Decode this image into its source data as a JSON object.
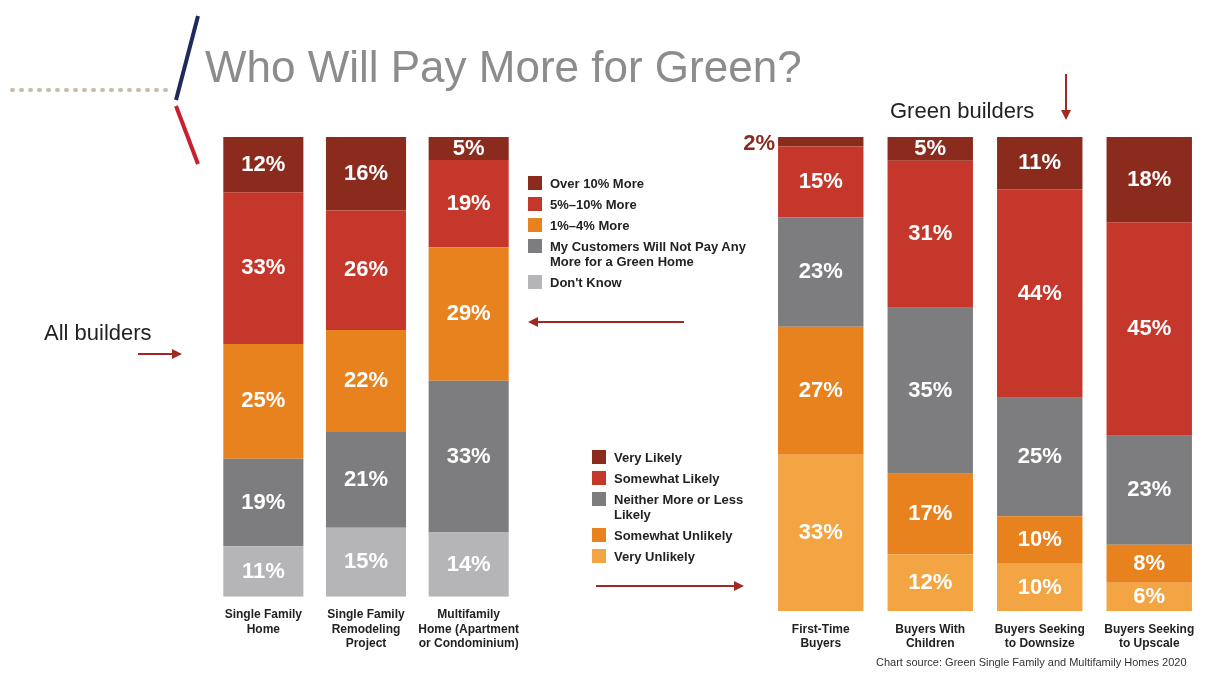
{
  "chart_data": [
    {
      "type": "bar",
      "title": "Who Will Pay More for Green?",
      "subtitle": "All builders",
      "stacked": true,
      "ylim": [
        0,
        100
      ],
      "tick_labels": "x",
      "grid": false,
      "legend": "right",
      "categories": [
        "Single Family Home",
        "Single Family Remodeling Project",
        "Multifamily Home (Apartment or Condominium)"
      ],
      "series": [
        {
          "name": "Don't Know",
          "color": "#b5b5b7",
          "values": [
            11,
            15,
            14
          ],
          "value_labels": [
            "11%",
            "15%",
            "14%"
          ]
        },
        {
          "name": "My Customers Will Not Pay Any More for a Green Home",
          "color": "#7d7d7f",
          "values": [
            19,
            21,
            33
          ],
          "value_labels": [
            "19%",
            "21%",
            "33%"
          ]
        },
        {
          "name": "1%–4% More",
          "color": "#e8821e",
          "values": [
            25,
            22,
            29
          ],
          "value_labels": [
            "25%",
            "22%",
            "29%"
          ]
        },
        {
          "name": "5%–10% More",
          "color": "#c4372a",
          "values": [
            33,
            26,
            19
          ],
          "value_labels": [
            "33%",
            "26%",
            "19%"
          ]
        },
        {
          "name": "Over 10% More",
          "color": "#8a2b1d",
          "values": [
            12,
            16,
            5
          ],
          "value_labels": [
            "12%",
            "16%",
            "5%"
          ]
        }
      ]
    },
    {
      "type": "bar",
      "subtitle": "Green builders",
      "stacked": true,
      "ylim": [
        0,
        100
      ],
      "tick_labels": "x",
      "grid": false,
      "legend": "left",
      "categories": [
        "First-Time Buyers",
        "Buyers With Children",
        "Buyers Seeking to Downsize",
        "Buyers Seeking to Upscale"
      ],
      "annotations": [
        "Chart source: Green Single Family and Multifamily Homes 2020"
      ],
      "series": [
        {
          "name": "Very Unlikely",
          "color": "#f3a443",
          "values": [
            33,
            12,
            10,
            6
          ],
          "value_labels": [
            "33%",
            "12%",
            "10%",
            "6%"
          ]
        },
        {
          "name": "Somewhat Unlikely",
          "color": "#e8821e",
          "values": [
            27,
            17,
            10,
            8
          ],
          "value_labels": [
            "27%",
            "17%",
            "10%",
            "8%"
          ]
        },
        {
          "name": "Neither More or Less Likely",
          "color": "#7d7d7f",
          "values": [
            23,
            35,
            25,
            23
          ],
          "value_labels": [
            "23%",
            "35%",
            "25%",
            "23%"
          ]
        },
        {
          "name": "Somewhat Likely",
          "color": "#c4372a",
          "values": [
            15,
            31,
            44,
            45
          ],
          "value_labels": [
            "15%",
            "31%",
            "44%",
            "45%"
          ]
        },
        {
          "name": "Very Likely",
          "color": "#8a2b1d",
          "values": [
            2,
            5,
            11,
            18
          ],
          "value_labels": [
            "2%",
            "5%",
            "11%",
            "18%"
          ]
        }
      ]
    }
  ]
}
